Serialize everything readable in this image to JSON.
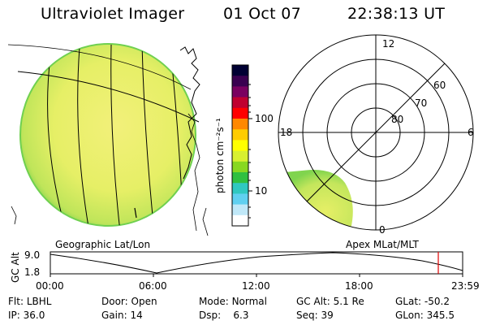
{
  "header": {
    "instrument": "Ultraviolet Imager",
    "date": "01 Oct 07",
    "time": "22:38:13 UT"
  },
  "colors": {
    "disk_fill": "#e6f06a",
    "disk_edge": "#7fd44e",
    "polar_fill": "#a8e060",
    "marker": "#e00000"
  },
  "colorbar": {
    "unit_label": "photon cm⁻²s⁻¹",
    "ticks": [
      {
        "label": "100",
        "value": 100
      },
      {
        "label": "10",
        "value": 10
      }
    ],
    "scale": "log",
    "colors": [
      "#000033",
      "#3a0050",
      "#7a0060",
      "#c00030",
      "#ff0000",
      "#ff8800",
      "#ffcc00",
      "#ffff00",
      "#d8f030",
      "#88d820",
      "#30c040",
      "#30c8c0",
      "#60d0f0",
      "#c0e8f8",
      "#ffffff"
    ]
  },
  "polar_plot": {
    "lat_labels": [
      "80",
      "70",
      "60"
    ],
    "mlt_labels": {
      "top": "12",
      "right": "6",
      "bottom": "0",
      "left": "18"
    }
  },
  "map_labels": {
    "left": "Geographic Lat/Lon",
    "right": "Apex MLat/MLT"
  },
  "altitude_plot": {
    "ylabel": "GC Alt",
    "y_ticks": [
      "9.0",
      "1.8"
    ],
    "x_ticks": [
      "00:00",
      "06:00",
      "12:00",
      "18:00",
      "23:59"
    ],
    "marker_time": "22:38"
  },
  "info": [
    {
      "label": "Flt:",
      "value": "LBHL"
    },
    {
      "label": "Door:",
      "value": "Open"
    },
    {
      "label": "Mode:",
      "value": "Normal"
    },
    {
      "label": "GC Alt:",
      "value": "5.1 Re"
    },
    {
      "label": "GLat:",
      "value": "-50.2"
    },
    {
      "label": "IP:",
      "value": "36.0"
    },
    {
      "label": "Gain:",
      "value": "14"
    },
    {
      "label": "Dsp:",
      "value": "6.3"
    },
    {
      "label": "Seq:",
      "value": "39"
    },
    {
      "label": "GLon:",
      "value": "345.5"
    }
  ]
}
